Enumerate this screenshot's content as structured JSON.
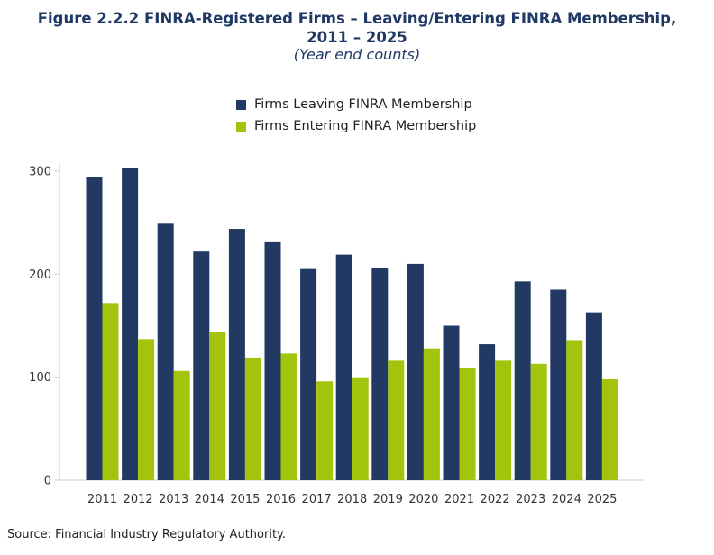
{
  "title_line1": "Figure 2.2.2 FINRA-Registered Firms – Leaving/Entering FINRA Membership,",
  "title_line2": "2011 – 2025",
  "subtitle": "(Year end counts)",
  "source": "Source: Financial Industry Regulatory Authority.",
  "colors": {
    "leaving": "#223a63",
    "entering": "#a3c40d",
    "axis": "#cccccc",
    "tick_text": "#333333"
  },
  "chart_data": {
    "type": "bar",
    "categories": [
      "2011",
      "2012",
      "2013",
      "2014",
      "2015",
      "2016",
      "2017",
      "2018",
      "2019",
      "2020",
      "2021",
      "2022",
      "2023",
      "2024",
      "2025"
    ],
    "series": [
      {
        "name": "Firms Leaving FINRA Membership",
        "values": [
          294,
          303,
          249,
          222,
          244,
          231,
          205,
          219,
          206,
          210,
          150,
          132,
          193,
          185,
          163
        ]
      },
      {
        "name": "Firms Entering FINRA Membership",
        "values": [
          172,
          137,
          106,
          144,
          119,
          123,
          96,
          100,
          116,
          128,
          109,
          116,
          113,
          136,
          98
        ]
      }
    ],
    "yticks": [
      0,
      100,
      200,
      300
    ],
    "ylim": [
      0,
      300
    ],
    "legend_position": "top-center",
    "grid": false
  }
}
